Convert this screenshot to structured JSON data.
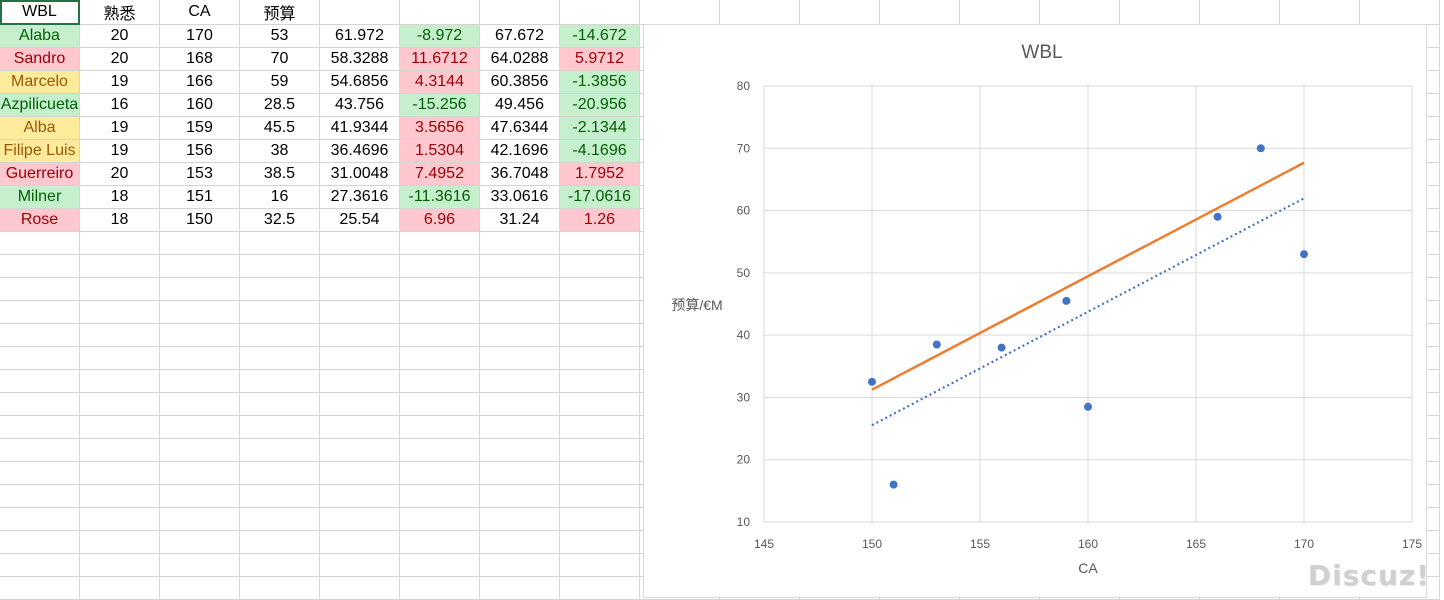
{
  "headers": [
    "WBL",
    "熟悉",
    "CA",
    "预算",
    "",
    "",
    "",
    ""
  ],
  "rows": [
    {
      "name": "Alaba",
      "name_color": "green",
      "fam": "20",
      "ca": "170",
      "budget": "53",
      "v1": "61.972",
      "d1": "-8.972",
      "d1_color": "green",
      "v2": "67.672",
      "d2": "-14.672",
      "d2_color": "green"
    },
    {
      "name": "Sandro",
      "name_color": "red",
      "fam": "20",
      "ca": "168",
      "budget": "70",
      "v1": "58.3288",
      "d1": "11.6712",
      "d1_color": "red",
      "v2": "64.0288",
      "d2": "5.9712",
      "d2_color": "red"
    },
    {
      "name": "Marcelo",
      "name_color": "yellow",
      "fam": "19",
      "ca": "166",
      "budget": "59",
      "v1": "54.6856",
      "d1": "4.3144",
      "d1_color": "red",
      "v2": "60.3856",
      "d2": "-1.3856",
      "d2_color": "green"
    },
    {
      "name": "Azpilicueta",
      "name_color": "green",
      "fam": "16",
      "ca": "160",
      "budget": "28.5",
      "v1": "43.756",
      "d1": "-15.256",
      "d1_color": "green",
      "v2": "49.456",
      "d2": "-20.956",
      "d2_color": "green"
    },
    {
      "name": "Alba",
      "name_color": "yellow",
      "fam": "19",
      "ca": "159",
      "budget": "45.5",
      "v1": "41.9344",
      "d1": "3.5656",
      "d1_color": "red",
      "v2": "47.6344",
      "d2": "-2.1344",
      "d2_color": "green"
    },
    {
      "name": "Filipe Luis",
      "name_color": "yellow",
      "fam": "19",
      "ca": "156",
      "budget": "38",
      "v1": "36.4696",
      "d1": "1.5304",
      "d1_color": "red",
      "v2": "42.1696",
      "d2": "-4.1696",
      "d2_color": "green"
    },
    {
      "name": "Guerreiro",
      "name_color": "red",
      "fam": "20",
      "ca": "153",
      "budget": "38.5",
      "v1": "31.0048",
      "d1": "7.4952",
      "d1_color": "red",
      "v2": "36.7048",
      "d2": "1.7952",
      "d2_color": "red"
    },
    {
      "name": "Milner",
      "name_color": "green",
      "fam": "18",
      "ca": "151",
      "budget": "16",
      "v1": "27.3616",
      "d1": "-11.3616",
      "d1_color": "green",
      "v2": "33.0616",
      "d2": "-17.0616",
      "d2_color": "green"
    },
    {
      "name": "Rose",
      "name_color": "red",
      "fam": "18",
      "ca": "150",
      "budget": "32.5",
      "v1": "25.54",
      "d1": "6.96",
      "d1_color": "red",
      "v2": "31.24",
      "d2": "1.26",
      "d2_color": "red"
    }
  ],
  "colors": {
    "green_bg": "#c6efce",
    "green_text": "#006100",
    "red_bg": "#ffc7ce",
    "red_text": "#9c0006",
    "yellow_bg": "#ffeb9c",
    "yellow_text": "#9c5700",
    "point": "#4472c4",
    "trend_solid": "#ed7d31",
    "trend_dotted": "#4472c4"
  },
  "chart_data": {
    "type": "scatter",
    "title": "WBL",
    "xlabel": "CA",
    "ylabel": "预算/€M",
    "xlim": [
      145,
      175
    ],
    "ylim": [
      10,
      80
    ],
    "xticks": [
      "145",
      "150",
      "155",
      "160",
      "165",
      "170",
      "175"
    ],
    "yticks": [
      "10",
      "20",
      "30",
      "40",
      "50",
      "60",
      "70",
      "80"
    ],
    "grid": true,
    "points": [
      {
        "x": 170,
        "y": 53
      },
      {
        "x": 168,
        "y": 70
      },
      {
        "x": 166,
        "y": 59
      },
      {
        "x": 160,
        "y": 28.5
      },
      {
        "x": 159,
        "y": 45.5
      },
      {
        "x": 156,
        "y": 38
      },
      {
        "x": 153,
        "y": 38.5
      },
      {
        "x": 151,
        "y": 16
      },
      {
        "x": 150,
        "y": 32.5
      }
    ],
    "lines": [
      {
        "style": "solid",
        "color": "#ed7d31",
        "points": [
          {
            "x": 150,
            "y": 31.24
          },
          {
            "x": 170,
            "y": 67.672
          }
        ]
      },
      {
        "style": "dotted",
        "color": "#4472c4",
        "points": [
          {
            "x": 150,
            "y": 25.54
          },
          {
            "x": 170,
            "y": 61.972
          }
        ]
      }
    ]
  },
  "watermark": "Discuz!"
}
